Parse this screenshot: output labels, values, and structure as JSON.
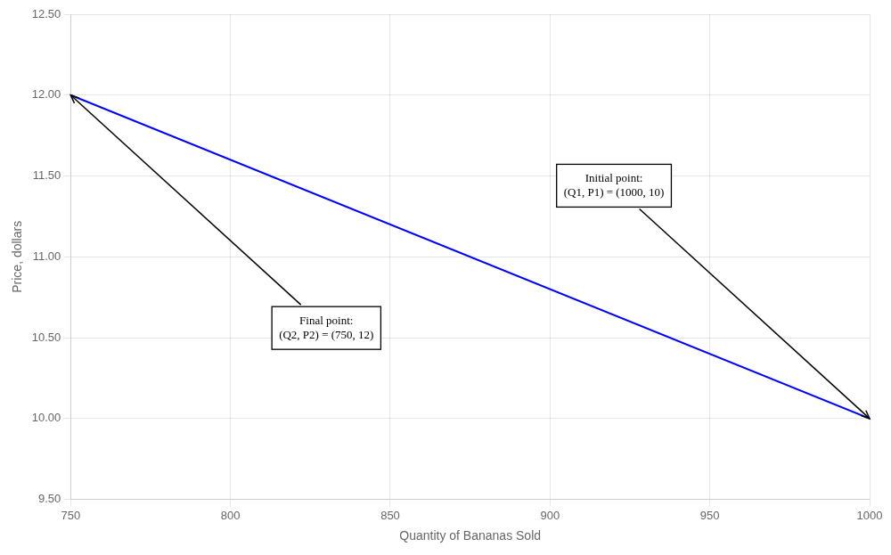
{
  "chart_data": {
    "type": "line",
    "x": [
      750,
      1000
    ],
    "values": [
      12,
      10
    ],
    "color": "#0000FF",
    "xlabel": "Quantity of Bananas Sold",
    "ylabel": "Price, dollars",
    "xlim": [
      750,
      1000
    ],
    "ylim": [
      9.5,
      12.5
    ],
    "xticks": [
      750,
      800,
      850,
      900,
      950,
      1000
    ],
    "yticks": [
      {
        "value": 9.5,
        "label": "9.50"
      },
      {
        "value": 10,
        "label": "10.00"
      },
      {
        "value": 10.5,
        "label": "10.50"
      },
      {
        "value": 11,
        "label": "11.00"
      },
      {
        "value": 11.5,
        "label": "11.50"
      },
      {
        "value": 12,
        "label": "12.00"
      },
      {
        "value": 12.5,
        "label": "12.50"
      }
    ],
    "grid": true,
    "annotations": [
      {
        "text": "Initial point:\n(Q1, P1) = (1000, 10)",
        "x": 1000,
        "y": 10
      },
      {
        "text": "Final point:\n(Q2, P2) = (750, 12)",
        "x": 750,
        "y": 12
      }
    ]
  }
}
